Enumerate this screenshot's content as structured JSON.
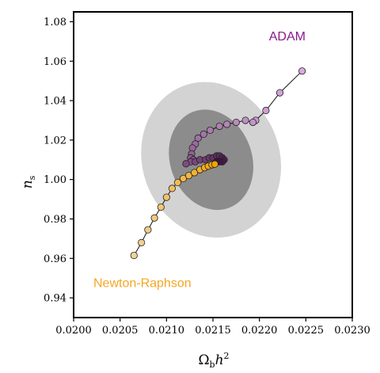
{
  "chart_data": {
    "type": "scatter",
    "xlabel": "Ω_b h²",
    "ylabel": "n_s",
    "xlim": [
      0.02,
      0.023
    ],
    "ylim": [
      0.93,
      1.085
    ],
    "x_ticks": [
      0.02,
      0.0205,
      0.021,
      0.0215,
      0.022,
      0.0225,
      0.023
    ],
    "x_tick_labels": [
      "0.0200",
      "0.0205",
      "0.0210",
      "0.0215",
      "0.0220",
      "0.0225",
      "0.0230"
    ],
    "y_ticks": [
      0.94,
      0.96,
      0.98,
      1.0,
      1.02,
      1.04,
      1.06,
      1.08
    ],
    "y_tick_labels": [
      "0.94",
      "0.96",
      "0.98",
      "1.00",
      "1.02",
      "1.04",
      "1.06",
      "1.08"
    ],
    "grid": false,
    "contours": [
      {
        "level": "outer",
        "center": [
          0.02148,
          1.01
        ],
        "semi_x": 0.00074,
        "semi_y": 0.04,
        "angle_deg": -20,
        "color": "#d3d3d3"
      },
      {
        "level": "inner",
        "center": [
          0.02148,
          1.01
        ],
        "semi_x": 0.00044,
        "semi_y": 0.026,
        "angle_deg": -20,
        "color": "#8c8c8c"
      }
    ],
    "series": [
      {
        "name": "ADAM",
        "color": "#8b1a8b",
        "label_pos": [
          0.0223,
          1.0705
        ],
        "points": [
          [
            0.02246,
            1.055
          ],
          [
            0.02222,
            1.044
          ],
          [
            0.02207,
            1.035
          ],
          [
            0.02196,
            1.03
          ],
          [
            0.02193,
            1.029
          ],
          [
            0.02185,
            1.03
          ],
          [
            0.02175,
            1.029
          ],
          [
            0.02165,
            1.028
          ],
          [
            0.02157,
            1.027
          ],
          [
            0.02147,
            1.025
          ],
          [
            0.0214,
            1.023
          ],
          [
            0.02134,
            1.021
          ],
          [
            0.02131,
            1.018
          ],
          [
            0.02128,
            1.016
          ],
          [
            0.02127,
            1.013
          ],
          [
            0.02126,
            1.011
          ],
          [
            0.02129,
            1.01
          ],
          [
            0.02126,
            1.009
          ],
          [
            0.02121,
            1.008
          ],
          [
            0.02131,
            1.009
          ],
          [
            0.02136,
            1.01
          ],
          [
            0.02142,
            1.01
          ],
          [
            0.02146,
            1.011
          ],
          [
            0.0215,
            1.011
          ],
          [
            0.02154,
            1.012
          ],
          [
            0.02157,
            1.012
          ],
          [
            0.0216,
            1.011
          ],
          [
            0.02162,
            1.01
          ],
          [
            0.0216,
            1.009
          ],
          [
            0.02157,
            1.009
          ],
          [
            0.02154,
            1.009
          ],
          [
            0.02152,
            1.008
          ]
        ],
        "color_start": "#d8a8dc",
        "color_end": "#3b0a3e"
      },
      {
        "name": "Newton-Raphson",
        "color": "#f5a623",
        "label_pos": [
          0.02074,
          0.9455
        ],
        "points": [
          [
            0.02065,
            0.9615
          ],
          [
            0.02073,
            0.968
          ],
          [
            0.0208,
            0.9745
          ],
          [
            0.02087,
            0.9805
          ],
          [
            0.02094,
            0.986
          ],
          [
            0.021,
            0.991
          ],
          [
            0.02106,
            0.9955
          ],
          [
            0.02112,
            0.9985
          ],
          [
            0.02118,
            1.0005
          ],
          [
            0.02124,
            1.002
          ],
          [
            0.0213,
            1.0035
          ],
          [
            0.02136,
            1.005
          ],
          [
            0.02141,
            1.006
          ],
          [
            0.02145,
            1.0068
          ],
          [
            0.02149,
            1.0075
          ],
          [
            0.02152,
            1.0078
          ]
        ],
        "color_start": "#f0d39a",
        "color_end": "#f5a200"
      }
    ]
  }
}
